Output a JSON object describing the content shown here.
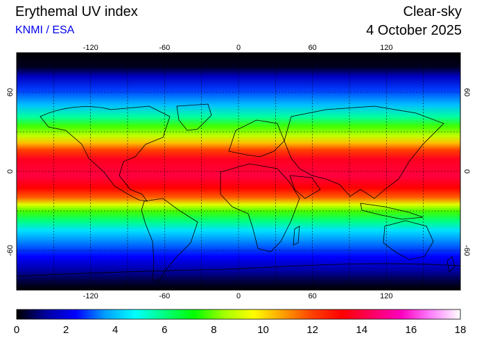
{
  "header": {
    "title": "Erythemal UV index",
    "credit": "KNMI / ESA",
    "mode": "Clear-sky",
    "date": "4 October 2025"
  },
  "map": {
    "lon_range": [
      -180,
      180
    ],
    "lat_range": [
      -90,
      90
    ],
    "lon_ticks": [
      "-120",
      "-60",
      "0",
      "60",
      "120"
    ],
    "lat_ticks": [
      "60",
      "0",
      "-60"
    ],
    "grid": "dotted 30 degree graticule",
    "coastlines": true
  },
  "colorbar": {
    "min": 0,
    "max": 18,
    "tick_labels": [
      "0",
      "2",
      "4",
      "6",
      "8",
      "10",
      "12",
      "14",
      "16",
      "18"
    ],
    "colors": [
      "#000000",
      "#0000a0",
      "#0000ff",
      "#00a0ff",
      "#00ffff",
      "#00ff80",
      "#00ff00",
      "#a0ff00",
      "#ffff00",
      "#ffa000",
      "#ff4000",
      "#ff0000",
      "#ff0060",
      "#ff00c0",
      "#ff80ff",
      "#ffffff"
    ]
  }
}
